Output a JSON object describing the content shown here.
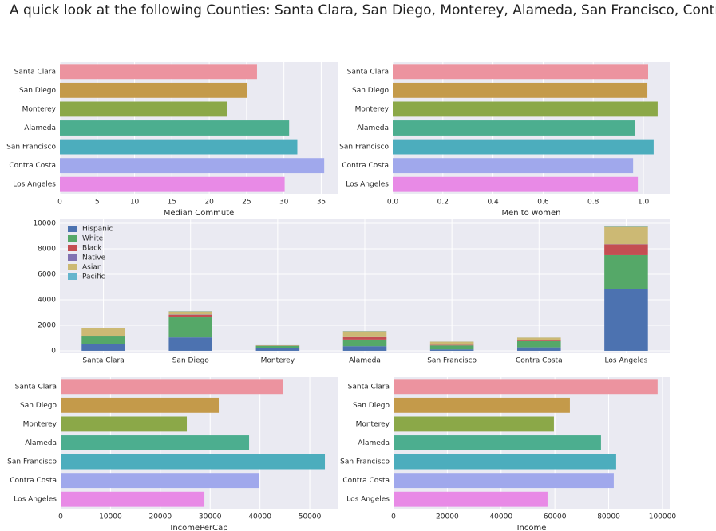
{
  "title": "A quick look at the following Counties: Santa Clara, San Diego, Monterey, Alameda, San Francisco, Contra Costa, Los Angeles",
  "chart_data": [
    {
      "type": "barh",
      "xlabel": "Median Commute",
      "categories": [
        "Santa Clara",
        "San Diego",
        "Monterey",
        "Alameda",
        "San Francisco",
        "Contra Costa",
        "Los Angeles"
      ],
      "values": [
        26.4,
        25.1,
        22.4,
        30.7,
        31.8,
        35.4,
        30.1
      ],
      "colors": [
        "#ec939f",
        "#c49a4a",
        "#8ba848",
        "#4cae8f",
        "#4cadbd",
        "#a0a8ec",
        "#e88ae6"
      ],
      "xlim": [
        0,
        37.2
      ],
      "xticks": [
        0,
        5,
        10,
        15,
        20,
        25,
        30,
        35
      ],
      "grid": true
    },
    {
      "type": "barh",
      "xlabel": "Men to women",
      "categories": [
        "Santa Clara",
        "San Diego",
        "Monterey",
        "Alameda",
        "San Francisco",
        "Contra Costa",
        "Los Angeles"
      ],
      "values": [
        1.019,
        1.016,
        1.057,
        0.965,
        1.041,
        0.959,
        0.978
      ],
      "colors": [
        "#ec939f",
        "#c49a4a",
        "#8ba848",
        "#4cae8f",
        "#4cadbd",
        "#a0a8ec",
        "#e88ae6"
      ],
      "xlim": [
        0,
        1.105
      ],
      "xticks": [
        {
          "value": 0,
          "label": "0.0"
        },
        {
          "value": 0.2,
          "label": "0.2"
        },
        {
          "value": 0.4,
          "label": "0.4"
        },
        {
          "value": 0.6,
          "label": "0.6"
        },
        {
          "value": 0.8,
          "label": "0.8"
        },
        {
          "value": 1,
          "label": "1.0"
        }
      ],
      "grid": true
    },
    {
      "type": "stacked",
      "categories": [
        "Santa Clara",
        "San Diego",
        "Monterey",
        "Alameda",
        "San Francisco",
        "Contra Costa",
        "Los Angeles"
      ],
      "series": [
        {
          "name": "Hispanic",
          "color": "#4c72b0",
          "values": [
            500,
            1050,
            230,
            360,
            110,
            270,
            4870
          ]
        },
        {
          "name": "White",
          "color": "#55a868",
          "values": [
            620,
            1570,
            160,
            520,
            310,
            490,
            2630
          ]
        },
        {
          "name": "Black",
          "color": "#c44e52",
          "values": [
            40,
            200,
            10,
            180,
            40,
            100,
            840
          ]
        },
        {
          "name": "Native",
          "color": "#8172b2",
          "values": [
            10,
            20,
            5,
            10,
            5,
            5,
            20
          ]
        },
        {
          "name": "Asian",
          "color": "#ccb974",
          "values": [
            620,
            250,
            30,
            470,
            250,
            170,
            1360
          ]
        },
        {
          "name": "Pacific",
          "color": "#64b5cd",
          "values": [
            10,
            20,
            5,
            20,
            5,
            5,
            30
          ]
        }
      ],
      "ylim": [
        -190,
        10310
      ],
      "yticks": [
        0,
        2000,
        4000,
        6000,
        8000,
        10000
      ],
      "grid": true,
      "legend": "upper-left"
    },
    {
      "type": "barh",
      "xlabel": "IncomePerCap",
      "categories": [
        "Santa Clara",
        "San Diego",
        "Monterey",
        "Alameda",
        "San Francisco",
        "Contra Costa",
        "Los Angeles"
      ],
      "values": [
        44550,
        31730,
        25320,
        37820,
        53040,
        39900,
        28850
      ],
      "colors": [
        "#ec939f",
        "#c49a4a",
        "#8ba848",
        "#4cae8f",
        "#4cadbd",
        "#a0a8ec",
        "#e88ae6"
      ],
      "xlim": [
        0,
        55600
      ],
      "xticks": [
        0,
        10000,
        20000,
        30000,
        40000,
        50000
      ],
      "grid": true
    },
    {
      "type": "barh",
      "xlabel": "Income",
      "categories": [
        "Santa Clara",
        "San Diego",
        "Monterey",
        "Alameda",
        "San Francisco",
        "Contra Costa",
        "Los Angeles"
      ],
      "values": [
        98200,
        65580,
        59640,
        77150,
        82790,
        81900,
        57270
      ],
      "colors": [
        "#ec939f",
        "#c49a4a",
        "#8ba848",
        "#4cae8f",
        "#4cadbd",
        "#a0a8ec",
        "#e88ae6"
      ],
      "xlim": [
        0,
        102700
      ],
      "xticks": [
        0,
        20000,
        40000,
        60000,
        80000,
        100000
      ],
      "grid": true
    }
  ]
}
